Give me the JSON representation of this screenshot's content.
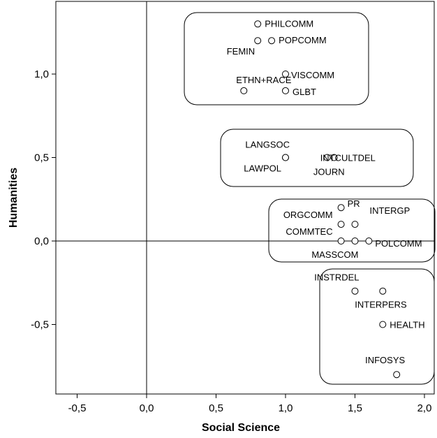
{
  "chart_data": {
    "type": "scatter",
    "title": "",
    "xlabel": "Social Science",
    "ylabel": "Humanities",
    "xlim": [
      -0.65,
      2.07
    ],
    "ylim": [
      -0.9,
      1.42
    ],
    "xticks": [
      -0.5,
      0.0,
      0.5,
      1.0,
      1.5,
      2.0
    ],
    "xtick_labels": [
      "-0,5",
      "0,0",
      "0,5",
      "1,0",
      "1,5",
      "2,0"
    ],
    "yticks": [
      -0.5,
      0.0,
      0.5,
      1.0
    ],
    "ytick_labels": [
      "-0,5",
      "0,0",
      "0,5",
      "1,0"
    ],
    "grid": false,
    "reference_lines": {
      "x": 0,
      "y": 0
    },
    "points": [
      {
        "label": "PHILCOMM",
        "x": 0.8,
        "y": 1.3
      },
      {
        "label": "POPCOMM",
        "x": 0.9,
        "y": 1.2
      },
      {
        "label": "FEMIN",
        "x": 0.8,
        "y": 1.2
      },
      {
        "label": "VISCOMM",
        "x": 1.0,
        "y": 1.0
      },
      {
        "label": "ETHN+RACE",
        "x": 0.7,
        "y": 0.9
      },
      {
        "label": "GLBT",
        "x": 1.0,
        "y": 0.9
      },
      {
        "label": "LANGSOC",
        "x": 1.0,
        "y": 0.5
      },
      {
        "label": "LAWPOL",
        "x": 1.0,
        "y": 0.5
      },
      {
        "label": "INTCULTDEL",
        "x": 1.3,
        "y": 0.5
      },
      {
        "label": "JOURN",
        "x": 1.35,
        "y": 0.5
      },
      {
        "label": "PR",
        "x": 1.4,
        "y": 0.2
      },
      {
        "label": "INTERGP",
        "x": 1.5,
        "y": 0.1
      },
      {
        "label": "ORGCOMM",
        "x": 1.4,
        "y": 0.1
      },
      {
        "label": "COMMTEC",
        "x": 1.4,
        "y": 0.0
      },
      {
        "label": "MASSCOM",
        "x": 1.5,
        "y": 0.0
      },
      {
        "label": "POLCOMM",
        "x": 1.6,
        "y": 0.0
      },
      {
        "label": "INSTRDEL",
        "x": 1.5,
        "y": -0.3
      },
      {
        "label": "INTERPERS",
        "x": 1.7,
        "y": -0.3
      },
      {
        "label": "HEALTH",
        "x": 1.7,
        "y": -0.5
      },
      {
        "label": "INFOSYS",
        "x": 1.8,
        "y": -0.8
      }
    ],
    "clusters": [
      {
        "members": [
          "PHILCOMM",
          "POPCOMM",
          "FEMIN",
          "VISCOMM",
          "ETHN+RACE",
          "GLBT"
        ]
      },
      {
        "members": [
          "LANGSOC",
          "LAWPOL",
          "INTCULTDEL",
          "JOURN"
        ]
      },
      {
        "members": [
          "PR",
          "INTERGP",
          "ORGCOMM",
          "COMMTEC",
          "MASSCOM",
          "POLCOMM"
        ]
      },
      {
        "members": [
          "INSTRDEL",
          "INTERPERS",
          "HEALTH",
          "INFOSYS"
        ]
      }
    ]
  }
}
